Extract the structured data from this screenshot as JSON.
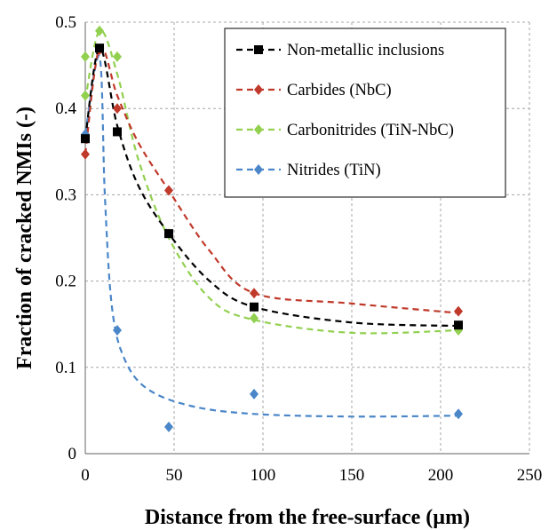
{
  "chart_data": {
    "type": "scatter",
    "title": "",
    "xlabel": "Distance from the free-surface (µm)",
    "ylabel": "Fraction of cracked NMIs (-)",
    "xlim": [
      0,
      250
    ],
    "ylim": [
      0,
      0.5
    ],
    "xticks": [
      "0",
      "50",
      "100",
      "150",
      "200",
      "250"
    ],
    "yticks": [
      "0",
      "0.1",
      "0.2",
      "0.3",
      "0.4",
      "0.5"
    ],
    "grid": true,
    "legend_position": "top-right",
    "series": [
      {
        "name": "Non-metallic inclusions",
        "color": "#000000",
        "marker": "square",
        "points": [
          [
            0,
            0.365
          ],
          [
            8,
            0.47
          ],
          [
            18,
            0.373
          ],
          [
            47,
            0.255
          ],
          [
            95,
            0.17
          ],
          [
            210,
            0.149
          ]
        ],
        "trend": [
          [
            0,
            0.365
          ],
          [
            8,
            0.47
          ],
          [
            18,
            0.38
          ],
          [
            30,
            0.31
          ],
          [
            47,
            0.255
          ],
          [
            70,
            0.2
          ],
          [
            95,
            0.17
          ],
          [
            150,
            0.152
          ],
          [
            210,
            0.148
          ]
        ]
      },
      {
        "name": "Carbides (NbC)",
        "color": "#c0392b",
        "marker": "diamond",
        "points": [
          [
            0,
            0.347
          ],
          [
            8,
            0.468
          ],
          [
            18,
            0.4
          ],
          [
            47,
            0.305
          ],
          [
            95,
            0.186
          ],
          [
            210,
            0.165
          ]
        ],
        "trend": [
          [
            0,
            0.347
          ],
          [
            8,
            0.47
          ],
          [
            18,
            0.415
          ],
          [
            30,
            0.36
          ],
          [
            47,
            0.305
          ],
          [
            70,
            0.235
          ],
          [
            95,
            0.186
          ],
          [
            150,
            0.174
          ],
          [
            210,
            0.163
          ]
        ]
      },
      {
        "name": "Carbonitrides (TiN-NbC)",
        "color": "#92d050",
        "marker": "diamond",
        "points": [
          [
            0,
            0.415
          ],
          [
            0,
            0.46
          ],
          [
            8,
            0.49
          ],
          [
            18,
            0.46
          ],
          [
            47,
            0.255
          ],
          [
            95,
            0.157
          ],
          [
            210,
            0.143
          ]
        ],
        "trend": [
          [
            0,
            0.41
          ],
          [
            8,
            0.49
          ],
          [
            18,
            0.44
          ],
          [
            30,
            0.34
          ],
          [
            47,
            0.25
          ],
          [
            70,
            0.18
          ],
          [
            95,
            0.155
          ],
          [
            150,
            0.14
          ],
          [
            210,
            0.143
          ]
        ]
      },
      {
        "name": "Nitrides (TiN)",
        "color": "#4a86c8",
        "marker": "diamond",
        "points": [
          [
            0,
            0.37
          ],
          [
            8,
            0.469
          ],
          [
            18,
            0.143
          ],
          [
            47,
            0.031
          ],
          [
            95,
            0.069
          ],
          [
            210,
            0.046
          ]
        ],
        "trend": [
          [
            0,
            0.37
          ],
          [
            8,
            0.46
          ],
          [
            11,
            0.3
          ],
          [
            15,
            0.17
          ],
          [
            22,
            0.11
          ],
          [
            35,
            0.075
          ],
          [
            60,
            0.055
          ],
          [
            95,
            0.046
          ],
          [
            150,
            0.043
          ],
          [
            210,
            0.044
          ]
        ]
      }
    ]
  }
}
